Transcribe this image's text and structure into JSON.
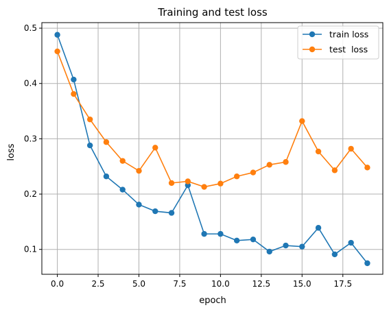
{
  "chart_data": {
    "type": "line",
    "title": "Training and test loss",
    "xlabel": "epoch",
    "ylabel": "loss",
    "xlim": [
      -0.95,
      19.95
    ],
    "ylim": [
      0.055,
      0.51
    ],
    "xticks": [
      0.0,
      2.5,
      5.0,
      7.5,
      10.0,
      12.5,
      15.0,
      17.5
    ],
    "xtick_labels": [
      "0.0",
      "2.5",
      "5.0",
      "7.5",
      "10.0",
      "12.5",
      "15.0",
      "17.5"
    ],
    "yticks": [
      0.1,
      0.2,
      0.3,
      0.4,
      0.5
    ],
    "ytick_labels": [
      "0.1",
      "0.2",
      "0.3",
      "0.4",
      "0.5"
    ],
    "grid": true,
    "legend_position": "top-right",
    "x": [
      0,
      1,
      2,
      3,
      4,
      5,
      6,
      7,
      8,
      9,
      10,
      11,
      12,
      13,
      14,
      15,
      16,
      17,
      18,
      19
    ],
    "series": [
      {
        "name": "train loss",
        "color": "#1f77b4",
        "marker": "circle",
        "values": [
          0.488,
          0.407,
          0.288,
          0.232,
          0.208,
          0.181,
          0.169,
          0.166,
          0.216,
          0.128,
          0.128,
          0.116,
          0.118,
          0.096,
          0.107,
          0.105,
          0.139,
          0.091,
          0.112,
          0.075
        ]
      },
      {
        "name": "test  loss",
        "color": "#ff7f0e",
        "marker": "circle",
        "values": [
          0.458,
          0.381,
          0.335,
          0.294,
          0.26,
          0.242,
          0.284,
          0.22,
          0.223,
          0.213,
          0.219,
          0.232,
          0.239,
          0.253,
          0.258,
          0.332,
          0.277,
          0.243,
          0.282,
          0.248
        ]
      }
    ]
  }
}
